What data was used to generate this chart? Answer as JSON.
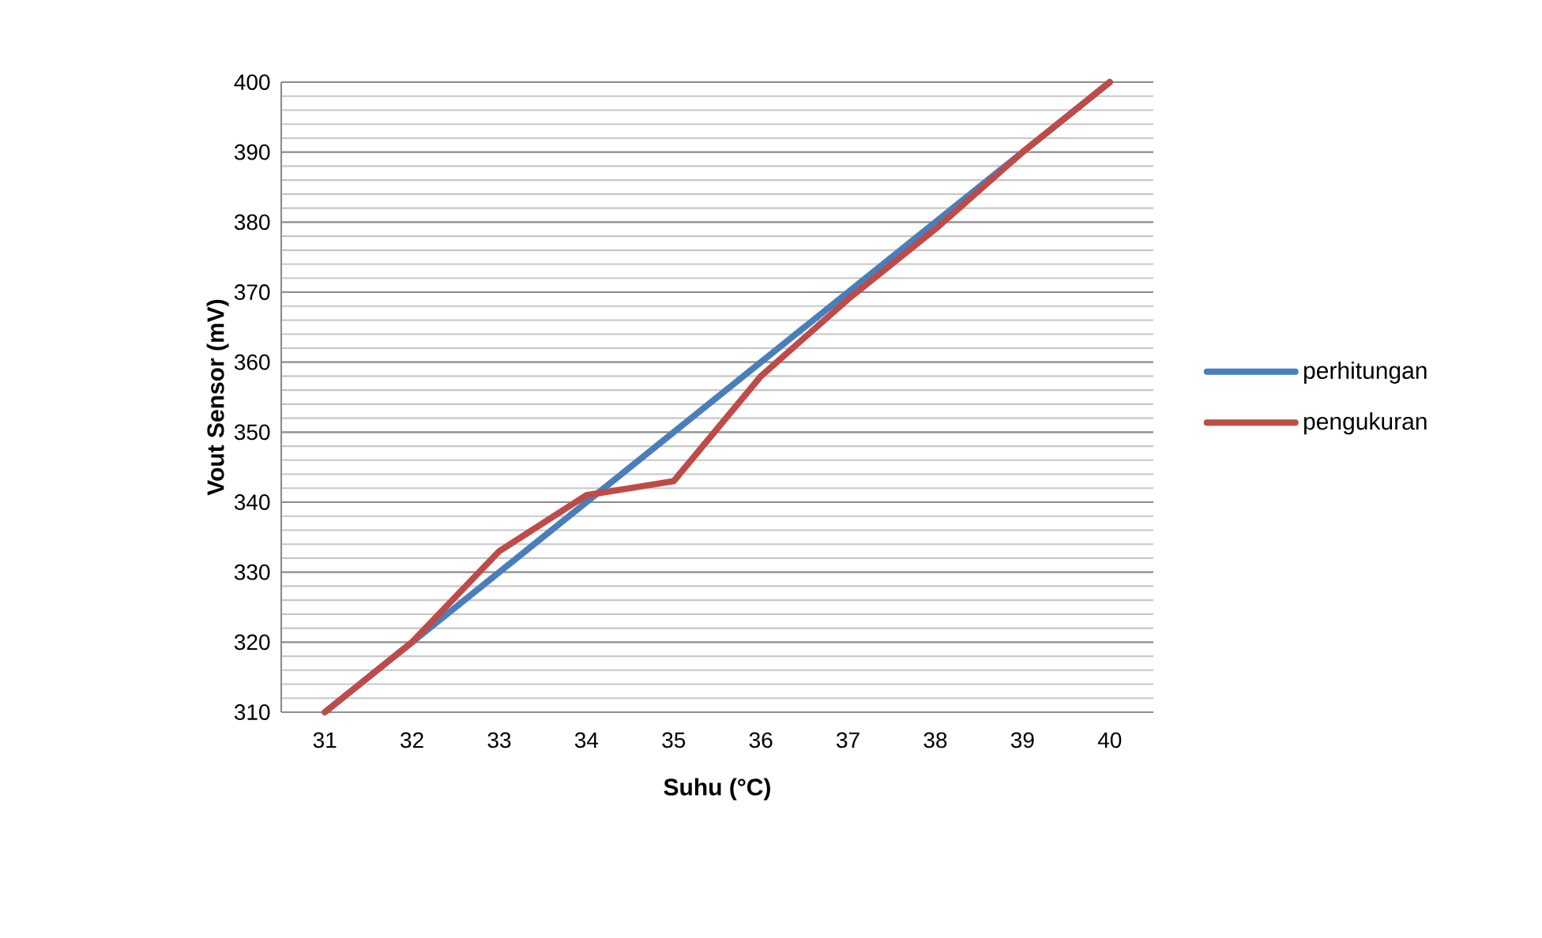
{
  "chart_data": {
    "type": "line",
    "xlabel": "Suhu (°C)",
    "ylabel": "Vout Sensor (mV)",
    "categories": [
      "31",
      "32",
      "33",
      "34",
      "35",
      "36",
      "37",
      "38",
      "39",
      "40"
    ],
    "series": [
      {
        "name": "perhitungan",
        "color": "#4a7ebb",
        "values": [
          310,
          320,
          330,
          340,
          350,
          360,
          370,
          380,
          390,
          400
        ]
      },
      {
        "name": "pengukuran",
        "color": "#be4b48",
        "values": [
          310,
          320,
          333,
          341,
          343,
          358,
          369,
          379,
          390,
          400
        ]
      }
    ],
    "ylim": [
      310,
      400
    ],
    "yticks": [
      310,
      320,
      330,
      340,
      350,
      360,
      370,
      380,
      390,
      400
    ],
    "grid": "y",
    "legend": "right",
    "marker": "none",
    "line_style": "solid"
  }
}
